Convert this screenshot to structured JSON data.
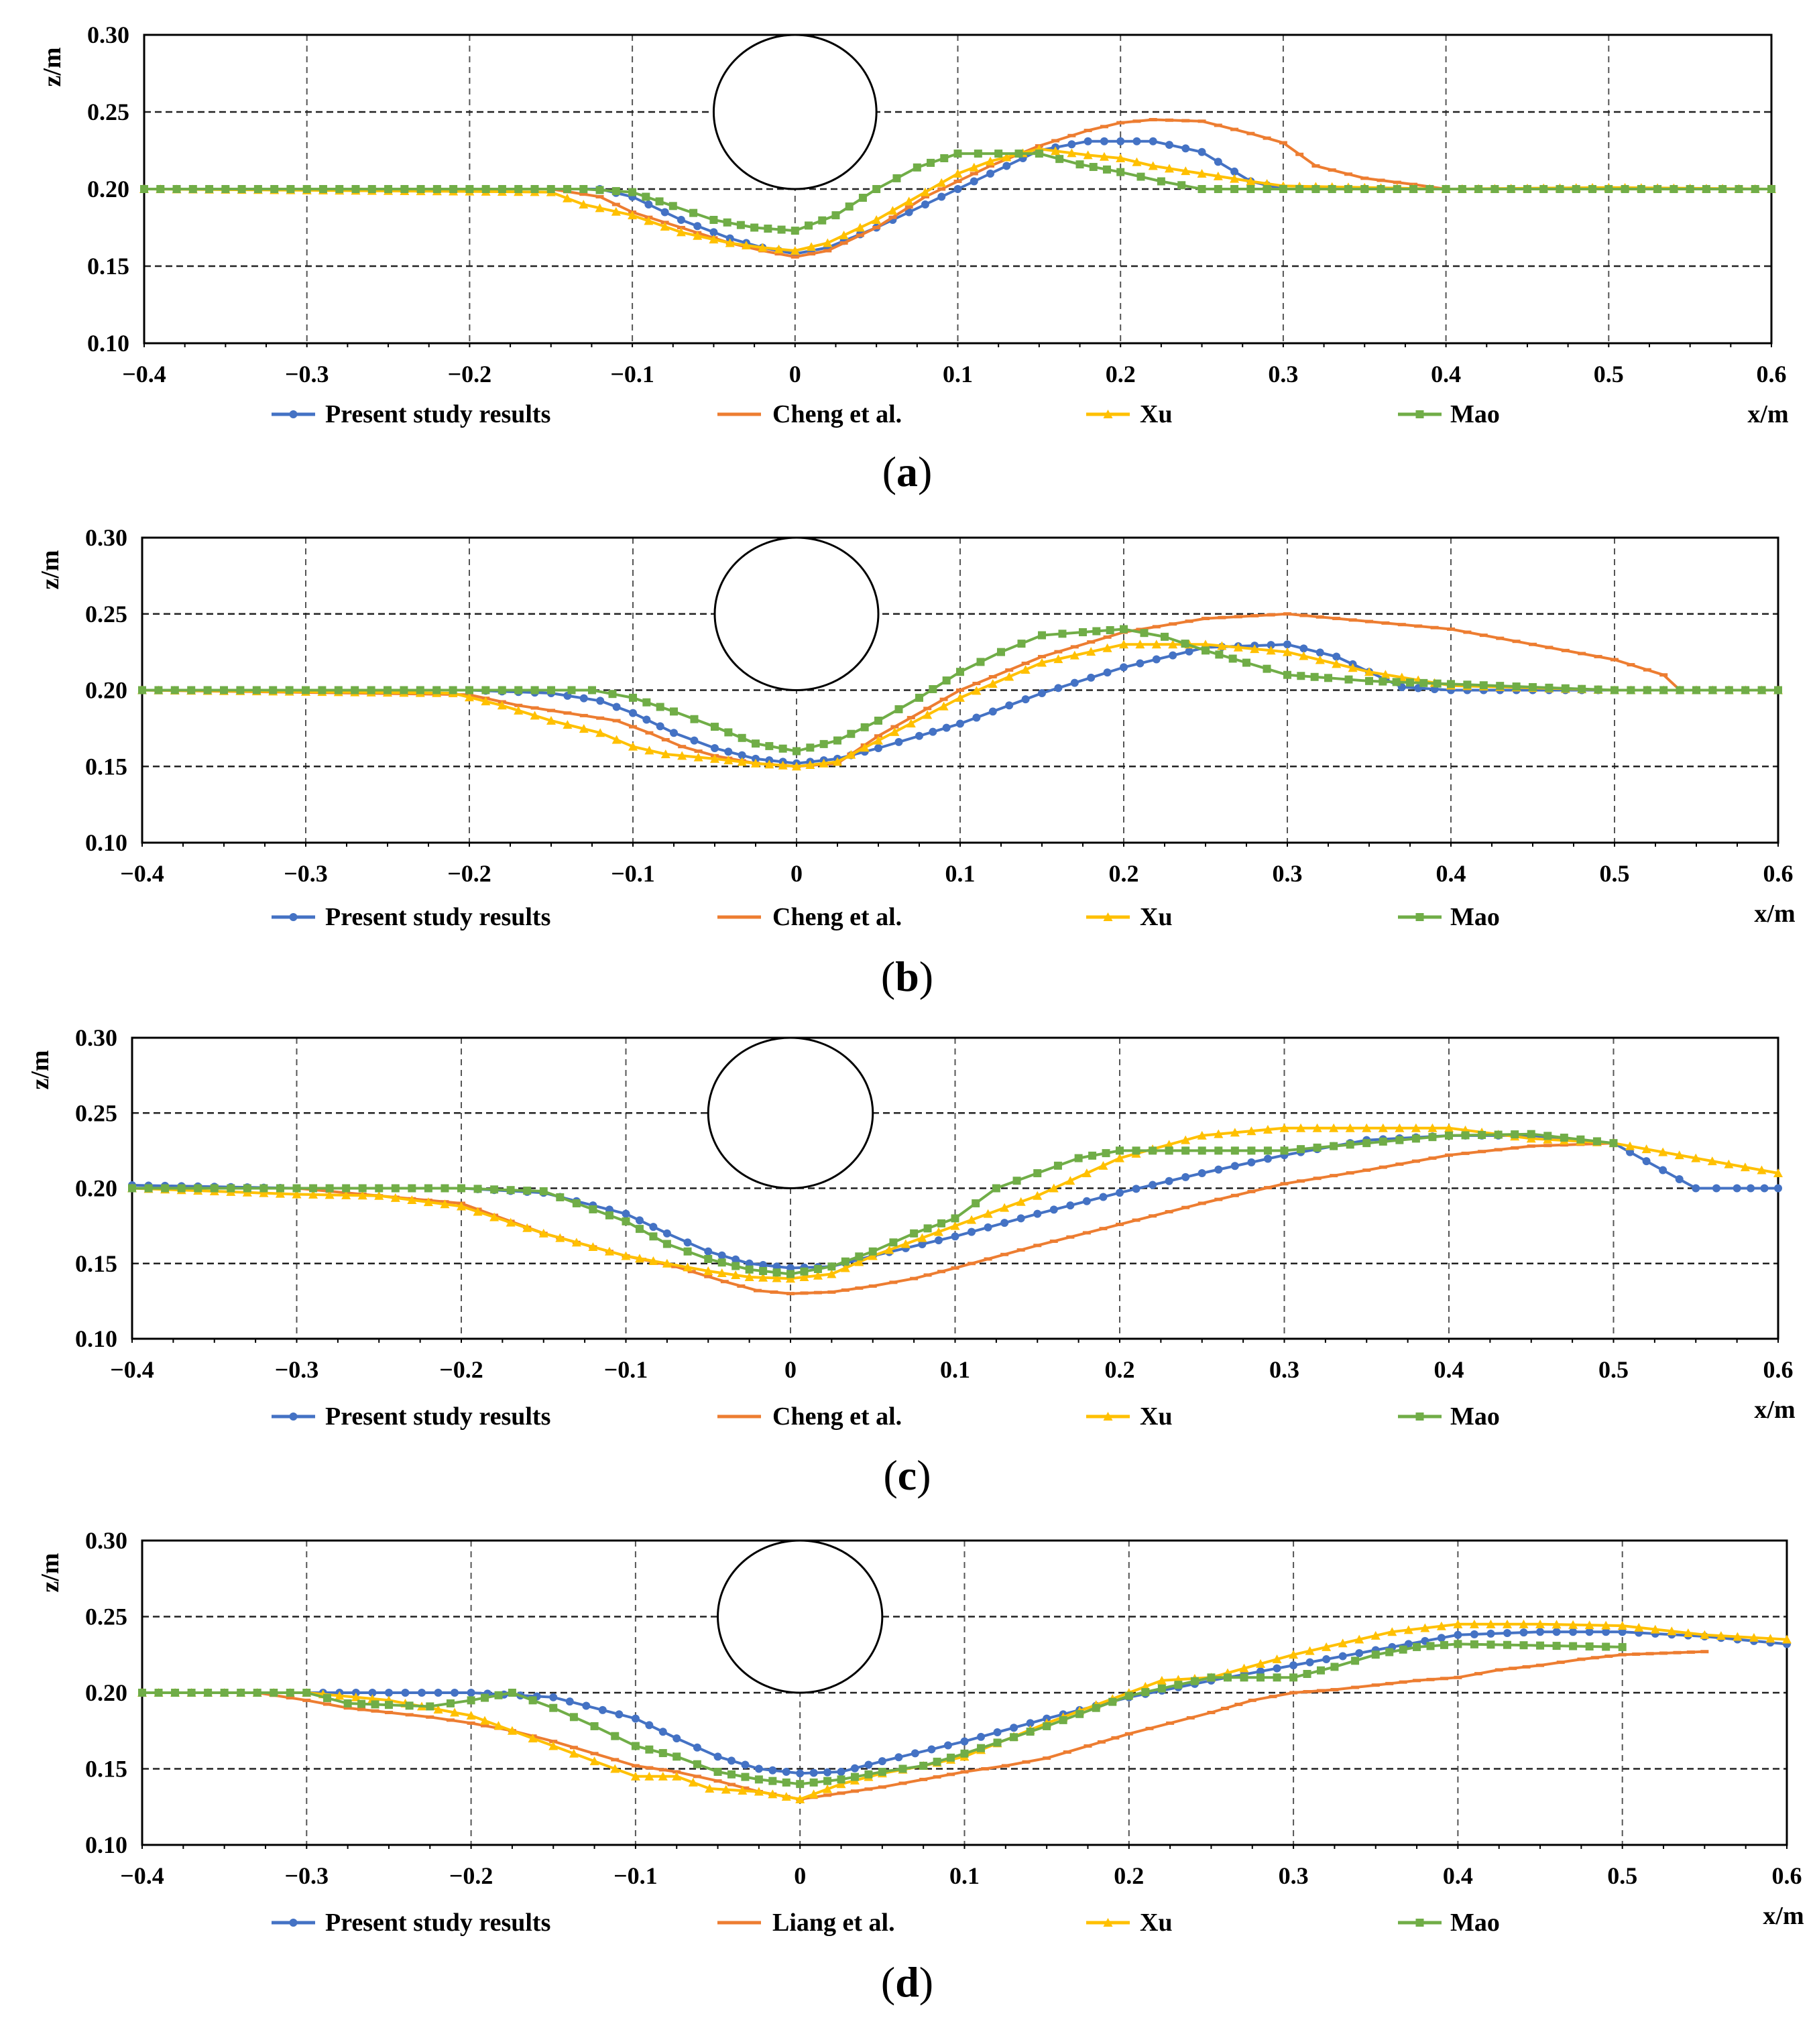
{
  "chart_data": [
    {
      "type": "line",
      "panel_label": "a",
      "xlabel": "x/m",
      "ylabel": "z/m",
      "xlim": [
        -0.4,
        0.6
      ],
      "ylim": [
        0.1,
        0.3
      ],
      "xticks": [
        "−0.4",
        "−0.3",
        "−0.2",
        "−0.1",
        "0",
        "0.1",
        "0.2",
        "0.3",
        "0.4",
        "0.5",
        "0.6"
      ],
      "yticks": [
        "0.10",
        "0.15",
        "0.20",
        "0.25",
        "0.30"
      ],
      "grid": true,
      "legend_position": "bottom",
      "pipe": {
        "cx": 0.0,
        "cy": 0.25,
        "r": 0.05
      },
      "series": [
        {
          "name": "Present study results",
          "color": "#4472C4",
          "marker": "circle",
          "x": [
            -0.4,
            -0.12,
            -0.1,
            -0.07,
            -0.04,
            -0.02,
            0.0,
            0.02,
            0.05,
            0.08,
            0.1,
            0.12,
            0.15,
            0.18,
            0.22,
            0.25,
            0.28,
            0.3,
            0.35,
            0.4,
            0.5,
            0.6
          ],
          "y": [
            0.2,
            0.2,
            0.195,
            0.18,
            0.168,
            0.162,
            0.158,
            0.162,
            0.175,
            0.19,
            0.2,
            0.21,
            0.225,
            0.231,
            0.231,
            0.224,
            0.205,
            0.2,
            0.2,
            0.2,
            0.2,
            0.2
          ]
        },
        {
          "name": "Cheng et al.",
          "color": "#ED7D31",
          "marker": "dash",
          "x": [
            -0.4,
            -0.15,
            -0.12,
            -0.1,
            -0.07,
            -0.04,
            -0.02,
            0.0,
            0.02,
            0.05,
            0.08,
            0.1,
            0.12,
            0.15,
            0.18,
            0.2,
            0.22,
            0.25,
            0.28,
            0.3,
            0.32,
            0.35,
            0.38,
            0.4,
            0.5,
            0.6
          ],
          "y": [
            0.2,
            0.2,
            0.195,
            0.185,
            0.175,
            0.165,
            0.16,
            0.156,
            0.16,
            0.175,
            0.195,
            0.205,
            0.215,
            0.228,
            0.238,
            0.243,
            0.245,
            0.244,
            0.236,
            0.23,
            0.215,
            0.207,
            0.203,
            0.2,
            0.2,
            0.2
          ]
        },
        {
          "name": "Xu",
          "color": "#FFC000",
          "marker": "triangle",
          "x": [
            -0.4,
            -0.15,
            -0.13,
            -0.1,
            -0.07,
            -0.04,
            -0.02,
            0.0,
            0.02,
            0.05,
            0.08,
            0.1,
            0.12,
            0.15,
            0.18,
            0.2,
            0.22,
            0.25,
            0.28,
            0.3,
            0.4,
            0.5,
            0.6
          ],
          "y": [
            0.2,
            0.198,
            0.19,
            0.183,
            0.172,
            0.165,
            0.162,
            0.16,
            0.165,
            0.18,
            0.198,
            0.21,
            0.218,
            0.226,
            0.222,
            0.22,
            0.215,
            0.21,
            0.205,
            0.202,
            0.2,
            0.201,
            0.2
          ]
        },
        {
          "name": "Mao",
          "color": "#70AD47",
          "marker": "square",
          "x": [
            -0.4,
            -0.13,
            -0.1,
            -0.075,
            -0.05,
            -0.025,
            0.0,
            0.025,
            0.05,
            0.075,
            0.1,
            0.125,
            0.15,
            0.175,
            0.2,
            0.225,
            0.25,
            0.3,
            0.4,
            0.5,
            0.6
          ],
          "y": [
            0.2,
            0.2,
            0.198,
            0.189,
            0.18,
            0.175,
            0.173,
            0.183,
            0.2,
            0.214,
            0.223,
            0.223,
            0.223,
            0.216,
            0.211,
            0.205,
            0.2,
            0.2,
            0.2,
            0.2,
            0.2
          ]
        }
      ]
    },
    {
      "type": "line",
      "panel_label": "b",
      "xlabel": "x/m",
      "ylabel": "z/m",
      "xlim": [
        -0.4,
        0.6
      ],
      "ylim": [
        0.1,
        0.3
      ],
      "xticks": [
        "−0.4",
        "−0.3",
        "−0.2",
        "−0.1",
        "0",
        "0.1",
        "0.2",
        "0.3",
        "0.4",
        "0.5",
        "0.6"
      ],
      "yticks": [
        "0.10",
        "0.15",
        "0.20",
        "0.25",
        "0.30"
      ],
      "grid": true,
      "legend_position": "bottom",
      "pipe": {
        "cx": 0.0,
        "cy": 0.25,
        "r": 0.05
      },
      "series": [
        {
          "name": "Present study results",
          "color": "#4472C4",
          "marker": "circle",
          "x": [
            -0.4,
            -0.2,
            -0.15,
            -0.12,
            -0.1,
            -0.075,
            -0.05,
            -0.025,
            0.0,
            0.025,
            0.05,
            0.075,
            0.1,
            0.15,
            0.2,
            0.25,
            0.3,
            0.33,
            0.37,
            0.4,
            0.5,
            0.6
          ],
          "y": [
            0.2,
            0.2,
            0.198,
            0.193,
            0.185,
            0.172,
            0.162,
            0.155,
            0.152,
            0.155,
            0.162,
            0.17,
            0.178,
            0.198,
            0.215,
            0.228,
            0.23,
            0.222,
            0.202,
            0.2,
            0.2,
            0.2
          ]
        },
        {
          "name": "Cheng et al.",
          "color": "#ED7D31",
          "marker": "dash",
          "x": [
            -0.4,
            -0.2,
            -0.17,
            -0.14,
            -0.11,
            -0.09,
            -0.07,
            -0.05,
            -0.025,
            0.0,
            0.025,
            0.05,
            0.1,
            0.15,
            0.2,
            0.25,
            0.3,
            0.35,
            0.4,
            0.45,
            0.5,
            0.53,
            0.54,
            0.6
          ],
          "y": [
            0.2,
            0.197,
            0.19,
            0.185,
            0.18,
            0.172,
            0.163,
            0.157,
            0.152,
            0.15,
            0.152,
            0.17,
            0.2,
            0.222,
            0.238,
            0.247,
            0.25,
            0.245,
            0.24,
            0.23,
            0.22,
            0.21,
            0.2,
            0.2
          ]
        },
        {
          "name": "Xu",
          "color": "#FFC000",
          "marker": "triangle",
          "x": [
            -0.4,
            -0.21,
            -0.18,
            -0.15,
            -0.12,
            -0.1,
            -0.08,
            -0.05,
            -0.025,
            0.0,
            0.025,
            0.05,
            0.1,
            0.15,
            0.2,
            0.25,
            0.3,
            0.35,
            0.4,
            0.5,
            0.6
          ],
          "y": [
            0.2,
            0.198,
            0.19,
            0.18,
            0.172,
            0.163,
            0.158,
            0.155,
            0.152,
            0.15,
            0.153,
            0.167,
            0.195,
            0.218,
            0.23,
            0.23,
            0.225,
            0.212,
            0.203,
            0.2,
            0.2
          ]
        },
        {
          "name": "Mao",
          "color": "#70AD47",
          "marker": "square",
          "x": [
            -0.4,
            -0.2,
            -0.15,
            -0.125,
            -0.1,
            -0.075,
            -0.05,
            -0.025,
            0.0,
            0.025,
            0.05,
            0.075,
            0.1,
            0.125,
            0.15,
            0.175,
            0.2,
            0.225,
            0.25,
            0.275,
            0.3,
            0.325,
            0.35,
            0.375,
            0.4,
            0.5,
            0.6
          ],
          "y": [
            0.2,
            0.2,
            0.2,
            0.2,
            0.195,
            0.186,
            0.176,
            0.165,
            0.16,
            0.167,
            0.18,
            0.195,
            0.212,
            0.225,
            0.236,
            0.238,
            0.24,
            0.235,
            0.226,
            0.218,
            0.21,
            0.208,
            0.206,
            0.205,
            0.204,
            0.2,
            0.2
          ]
        }
      ]
    },
    {
      "type": "line",
      "panel_label": "c",
      "xlabel": "x/m",
      "ylabel": "z/m",
      "xlim": [
        -0.4,
        0.6
      ],
      "ylim": [
        0.1,
        0.3
      ],
      "xticks": [
        "−0.4",
        "−0.3",
        "−0.2",
        "−0.1",
        "0",
        "0.1",
        "0.2",
        "0.3",
        "0.4",
        "0.5",
        "0.6"
      ],
      "yticks": [
        "0.10",
        "0.15",
        "0.20",
        "0.25",
        "0.30"
      ],
      "grid": true,
      "legend_position": "bottom",
      "pipe": {
        "cx": 0.0,
        "cy": 0.25,
        "r": 0.05
      },
      "series": [
        {
          "name": "Present study results",
          "color": "#4472C4",
          "marker": "circle",
          "x": [
            -0.4,
            -0.3,
            -0.2,
            -0.15,
            -0.1,
            -0.075,
            -0.05,
            -0.025,
            0.0,
            0.025,
            0.05,
            0.1,
            0.15,
            0.2,
            0.25,
            0.3,
            0.35,
            0.4,
            0.45,
            0.5,
            0.55,
            0.575,
            0.6
          ],
          "y": [
            0.202,
            0.2,
            0.2,
            0.197,
            0.183,
            0.17,
            0.158,
            0.15,
            0.147,
            0.148,
            0.155,
            0.168,
            0.183,
            0.197,
            0.21,
            0.222,
            0.232,
            0.235,
            0.235,
            0.23,
            0.2,
            0.2,
            0.2
          ]
        },
        {
          "name": "Cheng et al.",
          "color": "#ED7D31",
          "marker": "dash",
          "x": [
            -0.4,
            -0.3,
            -0.2,
            -0.15,
            -0.1,
            -0.07,
            -0.04,
            -0.02,
            0.0,
            0.025,
            0.05,
            0.075,
            0.1,
            0.15,
            0.2,
            0.25,
            0.3,
            0.35,
            0.4,
            0.45,
            0.5
          ],
          "y": [
            0.2,
            0.2,
            0.19,
            0.17,
            0.155,
            0.148,
            0.138,
            0.132,
            0.13,
            0.131,
            0.135,
            0.14,
            0.147,
            0.162,
            0.176,
            0.19,
            0.203,
            0.212,
            0.222,
            0.228,
            0.23
          ]
        },
        {
          "name": "Xu",
          "color": "#FFC000",
          "marker": "triangle",
          "x": [
            -0.4,
            -0.35,
            -0.3,
            -0.25,
            -0.2,
            -0.15,
            -0.1,
            -0.075,
            -0.05,
            -0.025,
            0.0,
            0.025,
            0.05,
            0.1,
            0.15,
            0.2,
            0.25,
            0.3,
            0.35,
            0.4,
            0.45,
            0.5,
            0.55,
            0.6
          ],
          "y": [
            0.2,
            0.198,
            0.196,
            0.195,
            0.188,
            0.17,
            0.155,
            0.15,
            0.145,
            0.141,
            0.14,
            0.143,
            0.155,
            0.175,
            0.195,
            0.22,
            0.235,
            0.24,
            0.24,
            0.24,
            0.233,
            0.23,
            0.22,
            0.21
          ]
        },
        {
          "name": "Mao",
          "color": "#70AD47",
          "marker": "square",
          "x": [
            -0.4,
            -0.3,
            -0.2,
            -0.15,
            -0.1,
            -0.075,
            -0.05,
            -0.025,
            0.0,
            0.025,
            0.05,
            0.075,
            0.1,
            0.125,
            0.15,
            0.175,
            0.2,
            0.25,
            0.3,
            0.35,
            0.4,
            0.45,
            0.5
          ],
          "y": [
            0.2,
            0.2,
            0.2,
            0.198,
            0.178,
            0.163,
            0.153,
            0.146,
            0.143,
            0.148,
            0.158,
            0.17,
            0.18,
            0.2,
            0.21,
            0.22,
            0.225,
            0.225,
            0.225,
            0.23,
            0.235,
            0.236,
            0.23
          ]
        }
      ]
    },
    {
      "type": "line",
      "panel_label": "d",
      "xlabel": "x/m",
      "ylabel": "z/m",
      "xlim": [
        -0.4,
        0.6
      ],
      "ylim": [
        0.1,
        0.3
      ],
      "xticks": [
        "−0.4",
        "−0.3",
        "−0.2",
        "−0.1",
        "0",
        "0.1",
        "0.2",
        "0.3",
        "0.4",
        "0.5",
        "0.6"
      ],
      "yticks": [
        "0.10",
        "0.15",
        "0.20",
        "0.25",
        "0.30"
      ],
      "grid": true,
      "legend_position": "bottom",
      "pipe": {
        "cx": 0.0,
        "cy": 0.25,
        "r": 0.05
      },
      "series": [
        {
          "name": "Present study results",
          "color": "#4472C4",
          "marker": "circle",
          "x": [
            -0.4,
            -0.3,
            -0.2,
            -0.15,
            -0.1,
            -0.075,
            -0.05,
            -0.025,
            0.0,
            0.025,
            0.05,
            0.1,
            0.15,
            0.2,
            0.25,
            0.3,
            0.35,
            0.4,
            0.45,
            0.5,
            0.55,
            0.6
          ],
          "y": [
            0.2,
            0.2,
            0.2,
            0.197,
            0.183,
            0.17,
            0.158,
            0.15,
            0.147,
            0.148,
            0.155,
            0.168,
            0.183,
            0.197,
            0.208,
            0.218,
            0.228,
            0.238,
            0.24,
            0.24,
            0.237,
            0.232
          ]
        },
        {
          "name": "Liang et al.",
          "color": "#ED7D31",
          "marker": "dash",
          "x": [
            -0.4,
            -0.33,
            -0.3,
            -0.275,
            -0.25,
            -0.225,
            -0.2,
            -0.175,
            -0.15,
            -0.125,
            -0.1,
            -0.075,
            -0.05,
            -0.025,
            0.0,
            0.025,
            0.05,
            0.075,
            0.1,
            0.125,
            0.15,
            0.175,
            0.2,
            0.225,
            0.25,
            0.275,
            0.3,
            0.325,
            0.35,
            0.375,
            0.4,
            0.425,
            0.45,
            0.475,
            0.5,
            0.525,
            0.55
          ],
          "y": [
            0.2,
            0.2,
            0.195,
            0.19,
            0.187,
            0.184,
            0.18,
            0.175,
            0.168,
            0.16,
            0.152,
            0.148,
            0.142,
            0.135,
            0.13,
            0.134,
            0.138,
            0.143,
            0.148,
            0.152,
            0.157,
            0.165,
            0.173,
            0.18,
            0.187,
            0.195,
            0.2,
            0.202,
            0.205,
            0.208,
            0.21,
            0.215,
            0.218,
            0.222,
            0.225,
            0.226,
            0.227
          ]
        },
        {
          "name": "Xu",
          "color": "#FFC000",
          "marker": "triangle",
          "x": [
            -0.4,
            -0.3,
            -0.25,
            -0.2,
            -0.175,
            -0.15,
            -0.125,
            -0.1,
            -0.075,
            -0.055,
            -0.025,
            0.0,
            0.025,
            0.05,
            0.075,
            0.1,
            0.15,
            0.2,
            0.22,
            0.25,
            0.3,
            0.36,
            0.4,
            0.45,
            0.5,
            0.55,
            0.6
          ],
          "y": [
            0.2,
            0.2,
            0.195,
            0.185,
            0.175,
            0.165,
            0.155,
            0.145,
            0.145,
            0.137,
            0.135,
            0.13,
            0.14,
            0.147,
            0.152,
            0.158,
            0.18,
            0.2,
            0.208,
            0.21,
            0.225,
            0.24,
            0.245,
            0.245,
            0.244,
            0.238,
            0.235
          ]
        },
        {
          "name": "Mao",
          "color": "#70AD47",
          "marker": "square",
          "x": [
            -0.4,
            -0.3,
            -0.275,
            -0.25,
            -0.225,
            -0.2,
            -0.175,
            -0.15,
            -0.125,
            -0.1,
            -0.075,
            -0.05,
            -0.025,
            0.0,
            0.025,
            0.05,
            0.075,
            0.1,
            0.15,
            0.2,
            0.25,
            0.3,
            0.325,
            0.35,
            0.375,
            0.4,
            0.45,
            0.5
          ],
          "y": [
            0.2,
            0.2,
            0.193,
            0.192,
            0.191,
            0.195,
            0.2,
            0.19,
            0.178,
            0.165,
            0.158,
            0.148,
            0.143,
            0.14,
            0.143,
            0.148,
            0.152,
            0.16,
            0.178,
            0.198,
            0.21,
            0.21,
            0.217,
            0.225,
            0.23,
            0.232,
            0.231,
            0.23
          ]
        }
      ]
    }
  ]
}
